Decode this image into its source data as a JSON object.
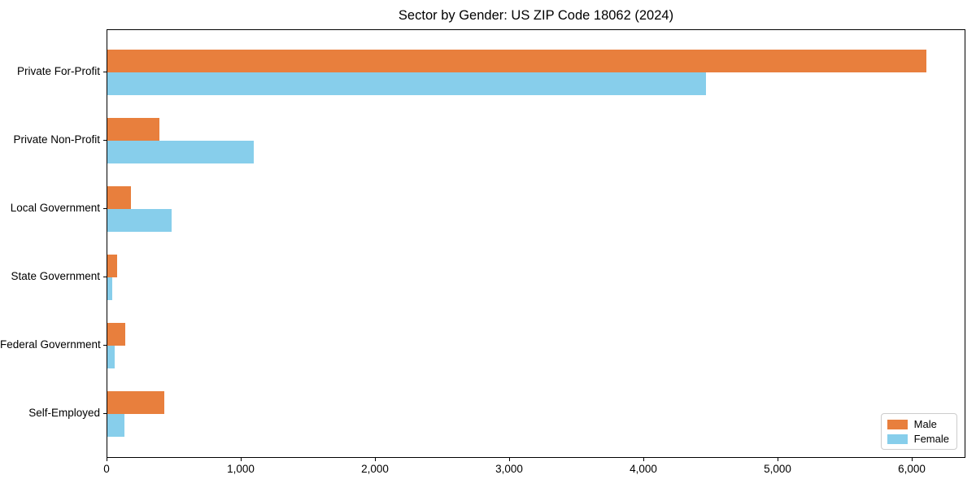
{
  "title": "Sector by Gender: US ZIP Code 18062 (2024)",
  "chart_data": {
    "type": "bar",
    "orientation": "horizontal",
    "title": "Sector by Gender: US ZIP Code 18062 (2024)",
    "categories": [
      "Private For-Profit",
      "Private Non-Profit",
      "Local Government",
      "State Government",
      "Federal Government",
      "Self-Employed"
    ],
    "series": [
      {
        "name": "Male",
        "color": "#e87f3d",
        "values": [
          6100,
          390,
          175,
          75,
          135,
          425
        ]
      },
      {
        "name": "Female",
        "color": "#87ceeb",
        "values": [
          4460,
          1090,
          480,
          35,
          55,
          125
        ]
      }
    ],
    "xlabel": "",
    "ylabel": "",
    "xlim": [
      0,
      6400
    ],
    "xticks": [
      0,
      1000,
      2000,
      3000,
      4000,
      5000,
      6000
    ],
    "xtick_labels": [
      "0",
      "1,000",
      "2,000",
      "3,000",
      "4,000",
      "5,000",
      "6,000"
    ],
    "grid": false,
    "legend": {
      "position": "lower right",
      "entries": [
        "Male",
        "Female"
      ]
    }
  },
  "colors": {
    "male": "#e87f3d",
    "female": "#87ceeb",
    "spine": "#000000",
    "legend_border": "#cccccc",
    "background": "#ffffff"
  }
}
